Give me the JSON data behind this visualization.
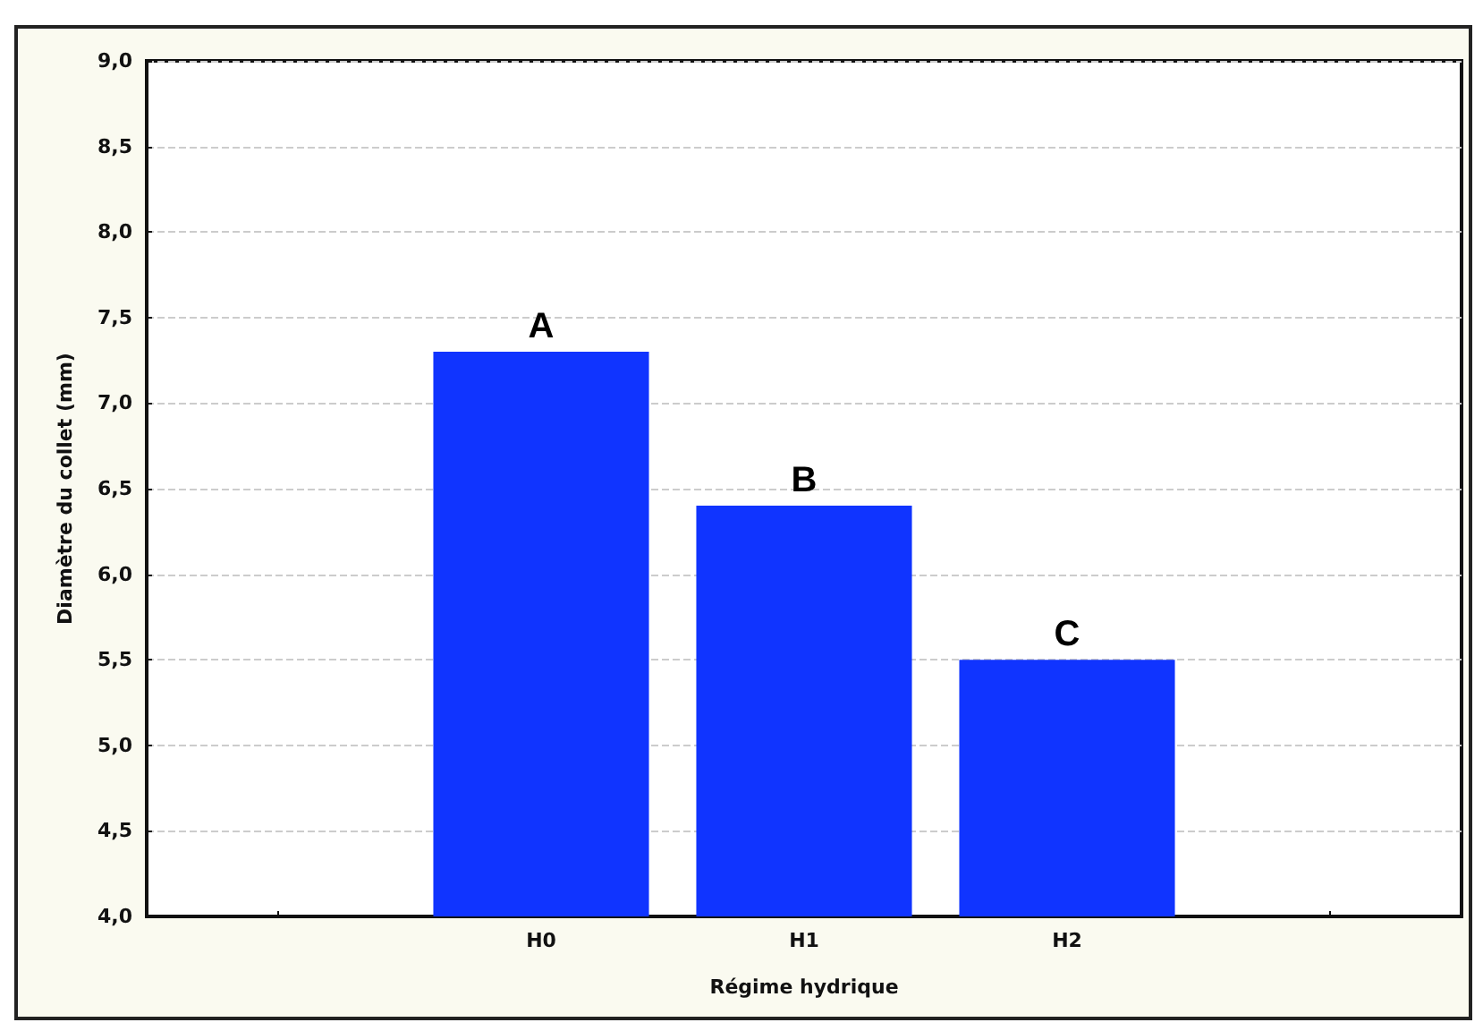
{
  "chart_data": {
    "type": "bar",
    "xlabel": "Régime hydrique",
    "ylabel": "Diamètre du collet (mm)",
    "categories": [
      null,
      "H0",
      "H1",
      "H2",
      null
    ],
    "values": [
      null,
      7.3,
      6.4,
      5.5,
      null
    ],
    "color": "#1034ff",
    "ylim": [
      4,
      9
    ],
    "yticks": [
      {
        "value": 4,
        "label": "4,0"
      },
      {
        "value": 4.5,
        "label": "4,5"
      },
      {
        "value": 5,
        "label": "5,0"
      },
      {
        "value": 5.5,
        "label": "5,5"
      },
      {
        "value": 6,
        "label": "6,0"
      },
      {
        "value": 6.5,
        "label": "6,5"
      },
      {
        "value": 7,
        "label": "7,0"
      },
      {
        "value": 7.5,
        "label": "7,5"
      },
      {
        "value": 8,
        "label": "8,0"
      },
      {
        "value": 8.5,
        "label": "8,5"
      },
      {
        "value": 9,
        "label": "9,0"
      }
    ],
    "grid": "y",
    "annotations": [
      {
        "text": "A",
        "x": "H0",
        "y": 7.3
      },
      {
        "text": "B",
        "x": "H1",
        "y": 6.4
      },
      {
        "text": "C",
        "x": "H2",
        "y": 5.5
      }
    ]
  }
}
